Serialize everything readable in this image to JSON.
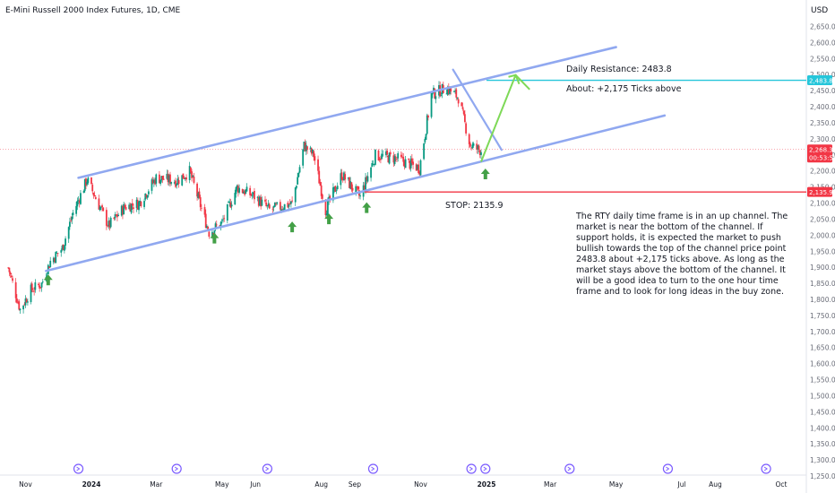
{
  "header": {
    "symbol": "E-Mini Russell 2000 Index Futures, 1D, CME",
    "currency": "USD"
  },
  "chart_data": {
    "type": "candlestick",
    "x_ticks": [
      "Nov",
      "2024",
      "Mar",
      "May",
      "Jun",
      "Aug",
      "Sep",
      "Nov",
      "2025",
      "Mar",
      "May",
      "Jul",
      "Aug",
      "Oct"
    ],
    "y_ticks": [
      "2,650.0",
      "2,600.0",
      "2,550.0",
      "2,500.0",
      "2,450.0",
      "2,400.0",
      "2,350.0",
      "2,300.0",
      "2,250.0",
      "2,200.0",
      "2,150.0",
      "2,100.0",
      "2,050.0",
      "2,000.0",
      "1,950.0",
      "1,900.0",
      "1,850.0",
      "1,800.0",
      "1,750.0",
      "1,700.0",
      "1,650.0",
      "1,600.0",
      "1,550.0",
      "1,500.0",
      "1,450.0",
      "1,400.0",
      "1,350.0",
      "1,300.0",
      "1,250.0"
    ],
    "ylim": [
      1250,
      2675
    ],
    "approx_close_path": [
      {
        "date": "2023-10-16",
        "close": 1900
      },
      {
        "date": "2023-10-27",
        "close": 1770
      },
      {
        "date": "2023-11-06",
        "close": 1830
      },
      {
        "date": "2023-11-16",
        "close": 1850
      },
      {
        "date": "2023-11-24",
        "close": 1920
      },
      {
        "date": "2023-12-05",
        "close": 1960
      },
      {
        "date": "2023-12-15",
        "close": 2070
      },
      {
        "date": "2023-12-28",
        "close": 2175
      },
      {
        "date": "2024-01-17",
        "close": 2030
      },
      {
        "date": "2024-02-01",
        "close": 2090
      },
      {
        "date": "2024-02-14",
        "close": 2100
      },
      {
        "date": "2024-03-01",
        "close": 2180
      },
      {
        "date": "2024-03-20",
        "close": 2170
      },
      {
        "date": "2024-04-01",
        "close": 2200
      },
      {
        "date": "2024-04-19",
        "close": 2010
      },
      {
        "date": "2024-05-01",
        "close": 2040
      },
      {
        "date": "2024-05-15",
        "close": 2150
      },
      {
        "date": "2024-06-01",
        "close": 2120
      },
      {
        "date": "2024-06-14",
        "close": 2080
      },
      {
        "date": "2024-07-05",
        "close": 2100
      },
      {
        "date": "2024-07-16",
        "close": 2280
      },
      {
        "date": "2024-07-25",
        "close": 2250
      },
      {
        "date": "2024-08-05",
        "close": 2080
      },
      {
        "date": "2024-08-20",
        "close": 2190
      },
      {
        "date": "2024-09-06",
        "close": 2120
      },
      {
        "date": "2024-09-20",
        "close": 2250
      },
      {
        "date": "2024-10-10",
        "close": 2240
      },
      {
        "date": "2024-10-31",
        "close": 2210
      },
      {
        "date": "2024-11-11",
        "close": 2440
      },
      {
        "date": "2024-11-25",
        "close": 2460
      },
      {
        "date": "2024-12-06",
        "close": 2430
      },
      {
        "date": "2024-12-17",
        "close": 2280
      },
      {
        "date": "2024-12-27",
        "close": 2265
      }
    ],
    "channel_upper": [
      {
        "date": "2023-12-20",
        "price": 2180
      },
      {
        "date": "2025-05-01",
        "price": 2587
      }
    ],
    "channel_lower": [
      {
        "date": "2023-11-20",
        "price": 1890
      },
      {
        "date": "2025-06-15",
        "price": 2374
      }
    ],
    "down_line": [
      {
        "date": "2024-12-01",
        "price": 2517
      },
      {
        "date": "2025-01-15",
        "price": 2267
      }
    ],
    "projection": [
      {
        "date": "2024-12-27",
        "price": 2230
      },
      {
        "date": "2025-01-28",
        "price": 2500
      },
      {
        "date": "2025-02-10",
        "price": 2455
      }
    ],
    "levels": [
      {
        "name": "resistance",
        "price": 2483.8,
        "label": "2,483.8",
        "color": "#26c6da",
        "from": "2025-01-01"
      },
      {
        "name": "stop",
        "price": 2135.9,
        "label": "2,135.9",
        "color": "#f23645",
        "from": "2024-09-10"
      }
    ],
    "last_price": {
      "label": "2,268.3",
      "countdown": "00:53:56",
      "price": 2268.3
    },
    "up_arrows": [
      {
        "date": "2023-11-22",
        "price": 1865
      },
      {
        "date": "2024-04-24",
        "price": 1995
      },
      {
        "date": "2024-07-05",
        "price": 2030
      },
      {
        "date": "2024-08-08",
        "price": 2055
      },
      {
        "date": "2024-09-12",
        "price": 2090
      },
      {
        "date": "2024-12-31",
        "price": 2195
      }
    ],
    "event_markers": [
      "2023-12-20",
      "2024-03-20",
      "2024-06-12",
      "2024-09-18",
      "2024-12-18",
      "2024-12-31",
      "2025-03-19",
      "2025-06-18",
      "2025-09-17"
    ],
    "colors": {
      "up": "#089981",
      "down": "#f23645",
      "channel": "#90a8f0",
      "projection": "#7ed957",
      "arrow": "#43a047",
      "event": "#7b5cff"
    }
  },
  "annotations": {
    "resistance": "Daily Resistance: 2483.8",
    "ticks": "About: +2,175 Ticks above",
    "stop": "STOP: 2135.9",
    "paragraph": "The RTY daily time frame is in an up channel. The market is near the bottom of the channel. If support holds, it is expected the market to push bullish towards the top of the channel price point 2483.8 about +2,175 ticks above. As long as the market stays above the bottom of the channel. It will be a good idea to turn to the one hour time frame and to look for long ideas in the buy zone."
  }
}
